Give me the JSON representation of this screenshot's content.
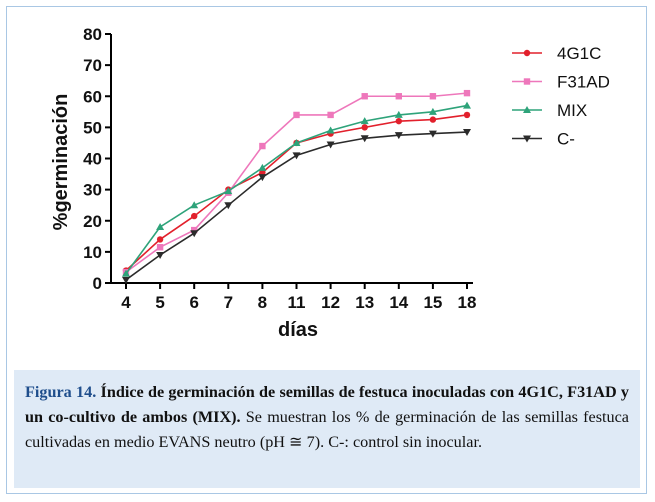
{
  "colors": {
    "4G1C": "#e2202c",
    "F31AD": "#ee77bb",
    "MIX": "#2ea37a",
    "C-": "#2b2b2b",
    "caption_label": "#1f4e8c",
    "caption_bg": "#dfeaf6",
    "frame": "#a9c7e4"
  },
  "chart_data": {
    "type": "line",
    "categories": [
      "4",
      "5",
      "6",
      "7",
      "8",
      "11",
      "12",
      "13",
      "14",
      "15",
      "18"
    ],
    "xlabel": "días",
    "ylabel": "%germinación",
    "ylim": [
      0,
      80
    ],
    "yticks": [
      0,
      10,
      20,
      30,
      40,
      50,
      60,
      70,
      80
    ],
    "grid": false,
    "legend_position": "top-right",
    "series": [
      {
        "name": "4G1C",
        "marker": "circle",
        "color": "#e2202c",
        "values": [
          4,
          14,
          21.5,
          30,
          35.5,
          45,
          48,
          50,
          52,
          52.5,
          54
        ]
      },
      {
        "name": "F31AD",
        "marker": "square",
        "color": "#ee77bb",
        "values": [
          3.5,
          11.5,
          17,
          29,
          44,
          54,
          54,
          60,
          60,
          60,
          61
        ]
      },
      {
        "name": "MIX",
        "marker": "triangle-up",
        "color": "#2ea37a",
        "values": [
          3,
          18,
          25,
          29.5,
          37,
          45,
          49,
          52,
          54,
          55,
          57
        ]
      },
      {
        "name": "C-",
        "marker": "triangle-down",
        "color": "#2b2b2b",
        "values": [
          1,
          9,
          16,
          25,
          34,
          41,
          44.5,
          46.5,
          47.5,
          48,
          48.5
        ]
      }
    ]
  },
  "caption": {
    "label": "Figura 14.",
    "title": "Índice de germinación de semillas de festuca inoculadas con 4G1C, F31AD y un co-cultivo de ambos (MIX).",
    "body": "Se muestran los % de germinación de las semillas festuca cultivadas en medio EVANS neutro (pH ≅ 7). C-: control sin inocular."
  }
}
